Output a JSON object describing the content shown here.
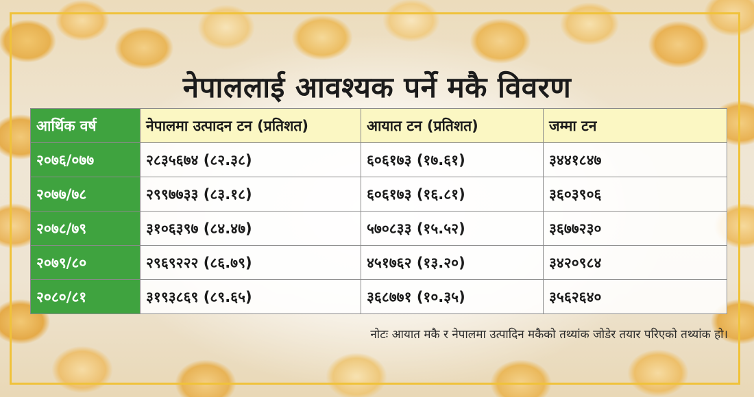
{
  "title": "नेपाललाई आवश्यक पर्ने मकै विवरण",
  "colors": {
    "frame": "#f0c23a",
    "year_column": "#3fa33f",
    "header_row": "#fbf7c3"
  },
  "table": {
    "headers": [
      "आर्थिक वर्ष",
      "नेपालमा उत्पादन टन (प्रतिशत)",
      "आयात टन (प्रतिशत)",
      "जम्मा टन"
    ],
    "rows": [
      [
        "२०७६/०७७",
        "२८३५६७४ (८२.३८)",
        "६०६१७३ (१७.६१)",
        "३४४१८४७"
      ],
      [
        "२०७७/७८",
        "२९९७७३३ (८३.१८)",
        "६०६१७३ (१६.८१)",
        "३६०३९०६"
      ],
      [
        "२०७८/७९",
        "३१०६३९७ (८४.४७)",
        "५७०८३३ (१५.५२)",
        "३६७७२३०"
      ],
      [
        "२०७९/८०",
        "२९६९२२२ (८६.७९)",
        "४५१७६२  (१३.२०)",
        "३४२०९८४"
      ],
      [
        "२०८०/८१",
        "३१९३८६९ (८९.६५)",
        "३६८७७१ (१०.३५)",
        "३५६२६४०"
      ]
    ]
  },
  "note": "नोटः आयात मकै र  नेपालमा उत्पादिन मकैको तथ्यांक जोडेर तयार परिएको तथ्यांक हो।"
}
